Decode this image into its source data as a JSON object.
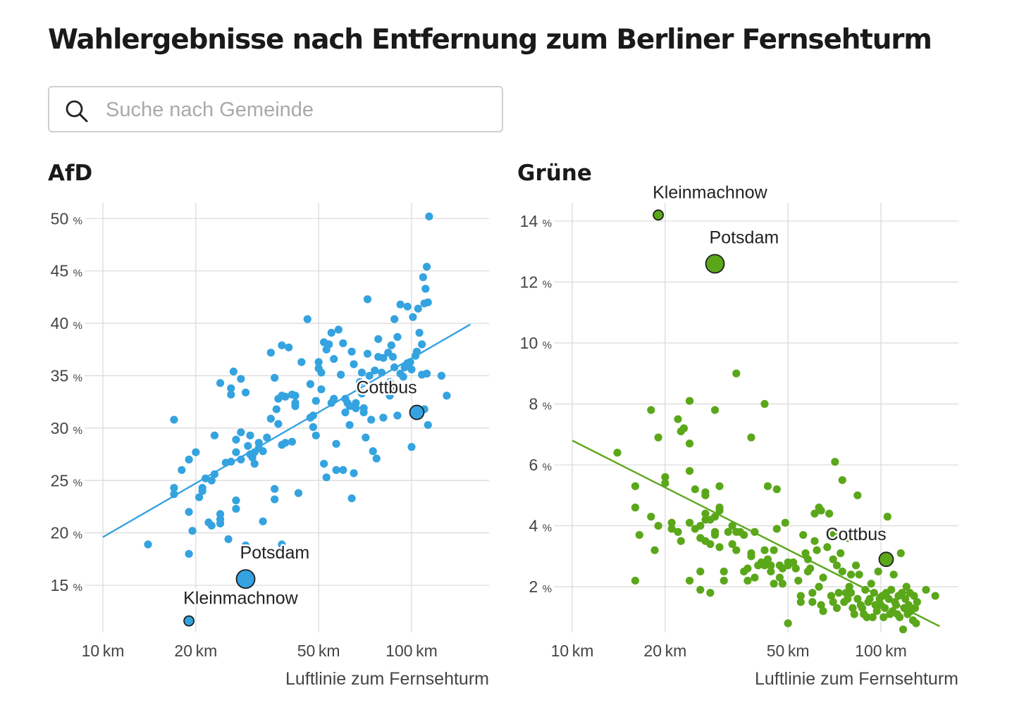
{
  "title": "Wahlergebnisse nach Entfernung zum Berliner Fernsehturm",
  "search": {
    "placeholder": "Suche nach Gemeinde",
    "icon": "search-icon"
  },
  "colors": {
    "afd": "#34a3e0",
    "gruene": "#5ba71a",
    "grid": "#d9d9d9",
    "axis": "#cccccc"
  },
  "chart_data": [
    {
      "type": "scatter",
      "title": "AfD",
      "xlabel": "Luftlinie zum Fernsehturm",
      "x_scale": "log",
      "x_unit": "km",
      "y_unit": "%",
      "xlim": [
        10,
        160
      ],
      "ylim": [
        10.5,
        51.5
      ],
      "x_ticks": [
        10,
        20,
        50,
        100
      ],
      "y_ticks": [
        15,
        20,
        25,
        30,
        35,
        40,
        45,
        50
      ],
      "grid": true,
      "color": "#34a3e0",
      "trend": {
        "x": [
          10,
          155
        ],
        "y": [
          19.6,
          39.9
        ]
      },
      "highlights": [
        {
          "label": "Potsdam",
          "x": 29,
          "y": 15.6,
          "size": 13
        },
        {
          "label": "Kleinmachnow",
          "x": 19,
          "y": 11.6,
          "size": 7
        },
        {
          "label": "Cottbus",
          "x": 104,
          "y": 31.5,
          "size": 10
        }
      ],
      "points": [
        [
          14,
          18.9
        ],
        [
          17,
          30.8
        ],
        [
          17,
          24.3
        ],
        [
          17,
          23.7
        ],
        [
          18,
          26
        ],
        [
          19,
          22
        ],
        [
          19,
          27
        ],
        [
          19,
          18
        ],
        [
          19.5,
          20.2
        ],
        [
          20,
          27.7
        ],
        [
          20.5,
          23.4
        ],
        [
          21,
          24.3
        ],
        [
          21,
          24
        ],
        [
          21.5,
          25.2
        ],
        [
          22,
          21
        ],
        [
          22.5,
          20.7
        ],
        [
          22.5,
          25
        ],
        [
          23,
          25.6
        ],
        [
          23,
          29.3
        ],
        [
          24,
          21.3
        ],
        [
          24,
          20.9
        ],
        [
          24,
          21.8
        ],
        [
          24,
          34.3
        ],
        [
          25,
          26.7
        ],
        [
          25.5,
          19.4
        ],
        [
          26,
          26.8
        ],
        [
          26,
          33.8
        ],
        [
          26,
          33.2
        ],
        [
          26.5,
          35.4
        ],
        [
          27,
          23.1
        ],
        [
          27,
          27.7
        ],
        [
          27,
          28.9
        ],
        [
          27,
          22.3
        ],
        [
          28,
          34.7
        ],
        [
          28,
          29.6
        ],
        [
          28,
          27
        ],
        [
          29,
          33.4
        ],
        [
          29,
          18.8
        ],
        [
          29.5,
          28.3
        ],
        [
          30,
          29.3
        ],
        [
          30,
          27.5
        ],
        [
          30.5,
          27.2
        ],
        [
          31,
          27.7
        ],
        [
          31,
          26.6
        ],
        [
          32,
          28.6
        ],
        [
          32,
          28.1
        ],
        [
          33,
          21.1
        ],
        [
          33,
          27.8
        ],
        [
          34,
          29.1
        ],
        [
          35,
          30.9
        ],
        [
          35,
          37.2
        ],
        [
          36,
          23.2
        ],
        [
          36,
          24.2
        ],
        [
          36,
          34.8
        ],
        [
          36.5,
          31.8
        ],
        [
          37,
          30.4
        ],
        [
          37,
          32.8
        ],
        [
          38,
          37.9
        ],
        [
          38,
          33.1
        ],
        [
          38,
          28.4
        ],
        [
          38,
          18.9
        ],
        [
          39,
          28.6
        ],
        [
          39,
          33
        ],
        [
          40,
          37.7
        ],
        [
          41,
          33.2
        ],
        [
          41,
          28.7
        ],
        [
          42,
          32.4
        ],
        [
          42,
          33.1
        ],
        [
          42,
          32.1
        ],
        [
          43,
          23.8
        ],
        [
          44,
          36.3
        ],
        [
          46,
          40.4
        ],
        [
          47,
          34.2
        ],
        [
          47,
          31
        ],
        [
          48,
          31.2
        ],
        [
          48,
          30.1
        ],
        [
          49,
          29.3
        ],
        [
          49,
          32.6
        ],
        [
          50,
          35.7
        ],
        [
          50,
          36.3
        ],
        [
          51,
          33.7
        ],
        [
          51,
          35.3
        ],
        [
          52,
          38.2
        ],
        [
          52,
          26.6
        ],
        [
          53,
          37.5
        ],
        [
          53,
          25.3
        ],
        [
          54,
          38
        ],
        [
          55,
          39.1
        ],
        [
          55,
          32.4
        ],
        [
          56,
          32.8
        ],
        [
          56,
          36.6
        ],
        [
          57,
          28.5
        ],
        [
          57,
          26
        ],
        [
          58,
          39.4
        ],
        [
          59,
          35.1
        ],
        [
          60,
          38.1
        ],
        [
          60,
          26
        ],
        [
          61,
          32.8
        ],
        [
          61,
          31.5
        ],
        [
          62,
          32.4
        ],
        [
          63,
          30.3
        ],
        [
          63,
          32.1
        ],
        [
          64,
          37.3
        ],
        [
          64,
          23.3
        ],
        [
          65,
          36.1
        ],
        [
          65,
          25.7
        ],
        [
          66,
          32.4
        ],
        [
          66,
          31.9
        ],
        [
          68,
          34.4
        ],
        [
          69,
          35.3
        ],
        [
          69,
          33.3
        ],
        [
          70,
          31.9
        ],
        [
          70,
          31.5
        ],
        [
          71,
          29.1
        ],
        [
          72,
          37.1
        ],
        [
          72,
          42.3
        ],
        [
          73,
          35
        ],
        [
          74,
          30.8
        ],
        [
          75,
          27.8
        ],
        [
          76,
          35.5
        ],
        [
          77,
          27.1
        ],
        [
          78,
          38.5
        ],
        [
          78,
          36.8
        ],
        [
          80,
          35.3
        ],
        [
          81,
          31
        ],
        [
          81,
          36.7
        ],
        [
          83,
          33.6
        ],
        [
          84,
          37.2
        ],
        [
          85,
          34.4
        ],
        [
          85,
          33.1
        ],
        [
          86,
          37.9
        ],
        [
          87,
          36.8
        ],
        [
          88,
          40.4
        ],
        [
          88,
          35.8
        ],
        [
          89,
          33.7
        ],
        [
          90,
          38.7
        ],
        [
          90,
          31.2
        ],
        [
          92,
          41.8
        ],
        [
          92,
          35.2
        ],
        [
          94,
          34.9
        ],
        [
          95,
          35.8
        ],
        [
          97,
          36.2
        ],
        [
          97,
          41.6
        ],
        [
          99,
          36.3
        ],
        [
          100,
          35.6
        ],
        [
          100,
          28.2
        ],
        [
          101,
          40.6
        ],
        [
          103,
          36.9
        ],
        [
          104,
          37.3
        ],
        [
          105,
          41.4
        ],
        [
          106,
          39.1
        ],
        [
          108,
          38
        ],
        [
          108,
          35.1
        ],
        [
          109,
          44.4
        ],
        [
          110,
          41.9
        ],
        [
          110,
          31.8
        ],
        [
          111,
          43.3
        ],
        [
          112,
          45.4
        ],
        [
          112,
          35.2
        ],
        [
          113,
          42
        ],
        [
          113,
          30.3
        ],
        [
          114,
          50.2
        ],
        [
          125,
          35
        ],
        [
          130,
          33.1
        ]
      ]
    },
    {
      "type": "scatter",
      "title": "Grüne",
      "xlabel": "Luftlinie zum Fernsehturm",
      "x_scale": "log",
      "x_unit": "km",
      "y_unit": "%",
      "xlim": [
        10,
        160
      ],
      "ylim": [
        0.5,
        14.6
      ],
      "x_ticks": [
        10,
        20,
        50,
        100
      ],
      "y_ticks": [
        2,
        4,
        6,
        8,
        10,
        12,
        14
      ],
      "grid": true,
      "color": "#5ba71a",
      "trend": {
        "x": [
          10,
          155
        ],
        "y": [
          6.8,
          0.7
        ]
      },
      "highlights": [
        {
          "label": "Kleinmachnow",
          "x": 19,
          "y": 14.2,
          "size": 7
        },
        {
          "label": "Potsdam",
          "x": 29,
          "y": 12.6,
          "size": 13
        },
        {
          "label": "Cottbus",
          "x": 104,
          "y": 2.9,
          "size": 10
        }
      ],
      "points": [
        [
          14,
          6.4
        ],
        [
          16,
          5.3
        ],
        [
          16,
          4.6
        ],
        [
          16,
          2.2
        ],
        [
          16.5,
          3.7
        ],
        [
          18,
          7.8
        ],
        [
          18,
          4.3
        ],
        [
          18.5,
          3.2
        ],
        [
          19,
          6.9
        ],
        [
          19,
          4
        ],
        [
          20,
          5.6
        ],
        [
          20,
          5.4
        ],
        [
          21,
          4.1
        ],
        [
          21,
          3.9
        ],
        [
          22,
          7.5
        ],
        [
          22,
          3.8
        ],
        [
          22.5,
          3.5
        ],
        [
          22.5,
          7.1
        ],
        [
          23,
          7.2
        ],
        [
          24,
          6.7
        ],
        [
          24,
          5.8
        ],
        [
          24,
          8.1
        ],
        [
          24,
          4.1
        ],
        [
          24,
          2.2
        ],
        [
          25,
          5.2
        ],
        [
          25,
          3.9
        ],
        [
          26,
          2.5
        ],
        [
          26,
          4
        ],
        [
          26,
          1.9
        ],
        [
          26,
          3.6
        ],
        [
          27,
          5
        ],
        [
          27,
          4.4
        ],
        [
          27,
          3.5
        ],
        [
          27,
          4.2
        ],
        [
          27,
          5.1
        ],
        [
          28,
          1.8
        ],
        [
          28,
          3.4
        ],
        [
          28,
          4.2
        ],
        [
          29,
          4.3
        ],
        [
          29,
          7.8
        ],
        [
          29,
          3.8
        ],
        [
          29,
          3.7
        ],
        [
          30,
          4.6
        ],
        [
          30,
          4.5
        ],
        [
          30,
          3.3
        ],
        [
          30,
          5.3
        ],
        [
          31,
          2.2
        ],
        [
          31,
          2.5
        ],
        [
          32,
          3.8
        ],
        [
          33,
          3.4
        ],
        [
          33,
          4
        ],
        [
          34,
          3.2
        ],
        [
          34,
          9
        ],
        [
          34,
          3.8
        ],
        [
          35,
          3.8
        ],
        [
          36,
          3.7
        ],
        [
          36,
          2.5
        ],
        [
          37,
          2.6
        ],
        [
          37,
          2.2
        ],
        [
          38,
          6.9
        ],
        [
          38,
          3.1
        ],
        [
          38,
          3
        ],
        [
          39,
          3.8
        ],
        [
          39,
          2.3
        ],
        [
          40,
          2.7
        ],
        [
          41,
          2.8
        ],
        [
          42,
          8
        ],
        [
          42,
          3.2
        ],
        [
          42,
          2.7
        ],
        [
          43,
          5.3
        ],
        [
          43,
          2.9
        ],
        [
          44,
          2.5
        ],
        [
          44,
          2.7
        ],
        [
          45,
          3.2
        ],
        [
          45,
          2.1
        ],
        [
          46,
          3.9
        ],
        [
          46,
          5.2
        ],
        [
          47,
          2.7
        ],
        [
          47,
          2.3
        ],
        [
          48,
          2.1
        ],
        [
          48,
          2.6
        ],
        [
          49,
          4.1
        ],
        [
          50,
          0.8
        ],
        [
          50,
          2.8
        ],
        [
          50,
          2.7
        ],
        [
          52,
          2.8
        ],
        [
          53,
          2.6
        ],
        [
          54,
          2.2
        ],
        [
          55,
          1.5
        ],
        [
          55,
          1.7
        ],
        [
          56,
          3.7
        ],
        [
          57,
          3.1
        ],
        [
          58,
          2.5
        ],
        [
          58,
          2.9
        ],
        [
          59,
          2.6
        ],
        [
          60,
          1.5
        ],
        [
          60,
          1.8
        ],
        [
          61,
          4.4
        ],
        [
          61,
          3.5
        ],
        [
          62,
          3.2
        ],
        [
          63,
          2
        ],
        [
          63,
          4.6
        ],
        [
          64,
          4.5
        ],
        [
          64,
          1.4
        ],
        [
          65,
          1.2
        ],
        [
          65,
          2.3
        ],
        [
          67,
          3.3
        ],
        [
          68,
          4.4
        ],
        [
          69,
          1.7
        ],
        [
          70,
          1.5
        ],
        [
          70,
          2.9
        ],
        [
          70,
          3.7
        ],
        [
          71,
          6.1
        ],
        [
          72,
          1.3
        ],
        [
          72,
          2.7
        ],
        [
          73,
          1.8
        ],
        [
          74,
          3.1
        ],
        [
          75,
          5.5
        ],
        [
          75,
          2.5
        ],
        [
          76,
          1.5
        ],
        [
          77,
          1.8
        ],
        [
          78,
          3.6
        ],
        [
          78,
          1.6
        ],
        [
          79,
          2
        ],
        [
          80,
          2.4
        ],
        [
          80,
          1.8
        ],
        [
          81,
          1.3
        ],
        [
          82,
          1.1
        ],
        [
          83,
          2.7
        ],
        [
          84,
          5
        ],
        [
          84,
          1.6
        ],
        [
          85,
          2.4
        ],
        [
          86,
          1.4
        ],
        [
          87,
          1.3
        ],
        [
          88,
          1.1
        ],
        [
          89,
          1.9
        ],
        [
          90,
          1
        ],
        [
          91,
          1.5
        ],
        [
          92,
          1.6
        ],
        [
          93,
          2.1
        ],
        [
          94,
          1
        ],
        [
          95,
          1.8
        ],
        [
          96,
          1.4
        ],
        [
          97,
          1.2
        ],
        [
          98,
          2.5
        ],
        [
          99,
          1.6
        ],
        [
          100,
          1.4
        ],
        [
          101,
          1.7
        ],
        [
          102,
          1
        ],
        [
          103,
          1.3
        ],
        [
          104,
          1.8
        ],
        [
          105,
          4.3
        ],
        [
          106,
          1.6
        ],
        [
          107,
          1.1
        ],
        [
          108,
          1.9
        ],
        [
          109,
          1.2
        ],
        [
          110,
          2.4
        ],
        [
          111,
          1.5
        ],
        [
          112,
          1.4
        ],
        [
          113,
          1.1
        ],
        [
          114,
          1.7
        ],
        [
          115,
          1
        ],
        [
          116,
          3.1
        ],
        [
          117,
          1.8
        ],
        [
          118,
          0.6
        ],
        [
          119,
          1.3
        ],
        [
          120,
          1.6
        ],
        [
          121,
          2
        ],
        [
          122,
          1.1
        ],
        [
          123,
          1.4
        ],
        [
          124,
          1.8
        ],
        [
          125,
          1.2
        ],
        [
          127,
          0.9
        ],
        [
          128,
          1.7
        ],
        [
          129,
          1.3
        ],
        [
          130,
          0.8
        ],
        [
          131,
          1.5
        ],
        [
          140,
          1.9
        ],
        [
          150,
          1.7
        ]
      ]
    }
  ]
}
